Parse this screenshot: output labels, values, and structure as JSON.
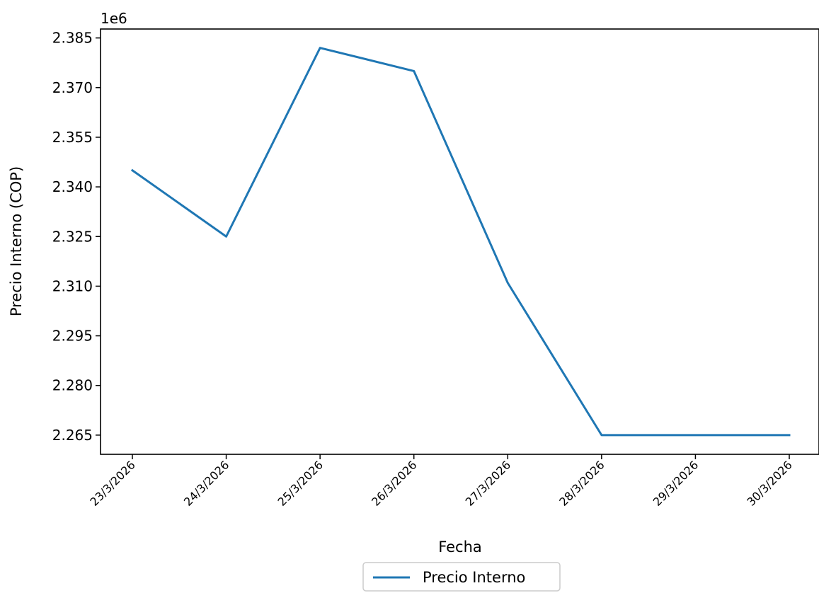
{
  "chart_data": {
    "type": "line",
    "title": "",
    "xlabel": "Fecha",
    "ylabel": "Precio Interno (COP)",
    "offset_text": "1e6",
    "categories": [
      "23/3/2026",
      "24/3/2026",
      "25/3/2026",
      "26/3/2026",
      "27/3/2026",
      "28/3/2026",
      "29/3/2026",
      "30/3/2026"
    ],
    "series": [
      {
        "name": "Precio Interno",
        "color": "#1f77b4",
        "values": [
          2.345,
          2.325,
          2.382,
          2.375,
          2.311,
          2.265,
          2.265,
          2.265
        ]
      }
    ],
    "yticks": [
      2.265,
      2.28,
      2.295,
      2.31,
      2.325,
      2.34,
      2.355,
      2.37,
      2.385
    ],
    "ytick_labels": [
      "2.265",
      "2.280",
      "2.295",
      "2.310",
      "2.325",
      "2.340",
      "2.355",
      "2.370",
      "2.385"
    ],
    "ylim": [
      2.2592,
      2.3877
    ],
    "grid": false,
    "legend_position": "bottom-center"
  }
}
